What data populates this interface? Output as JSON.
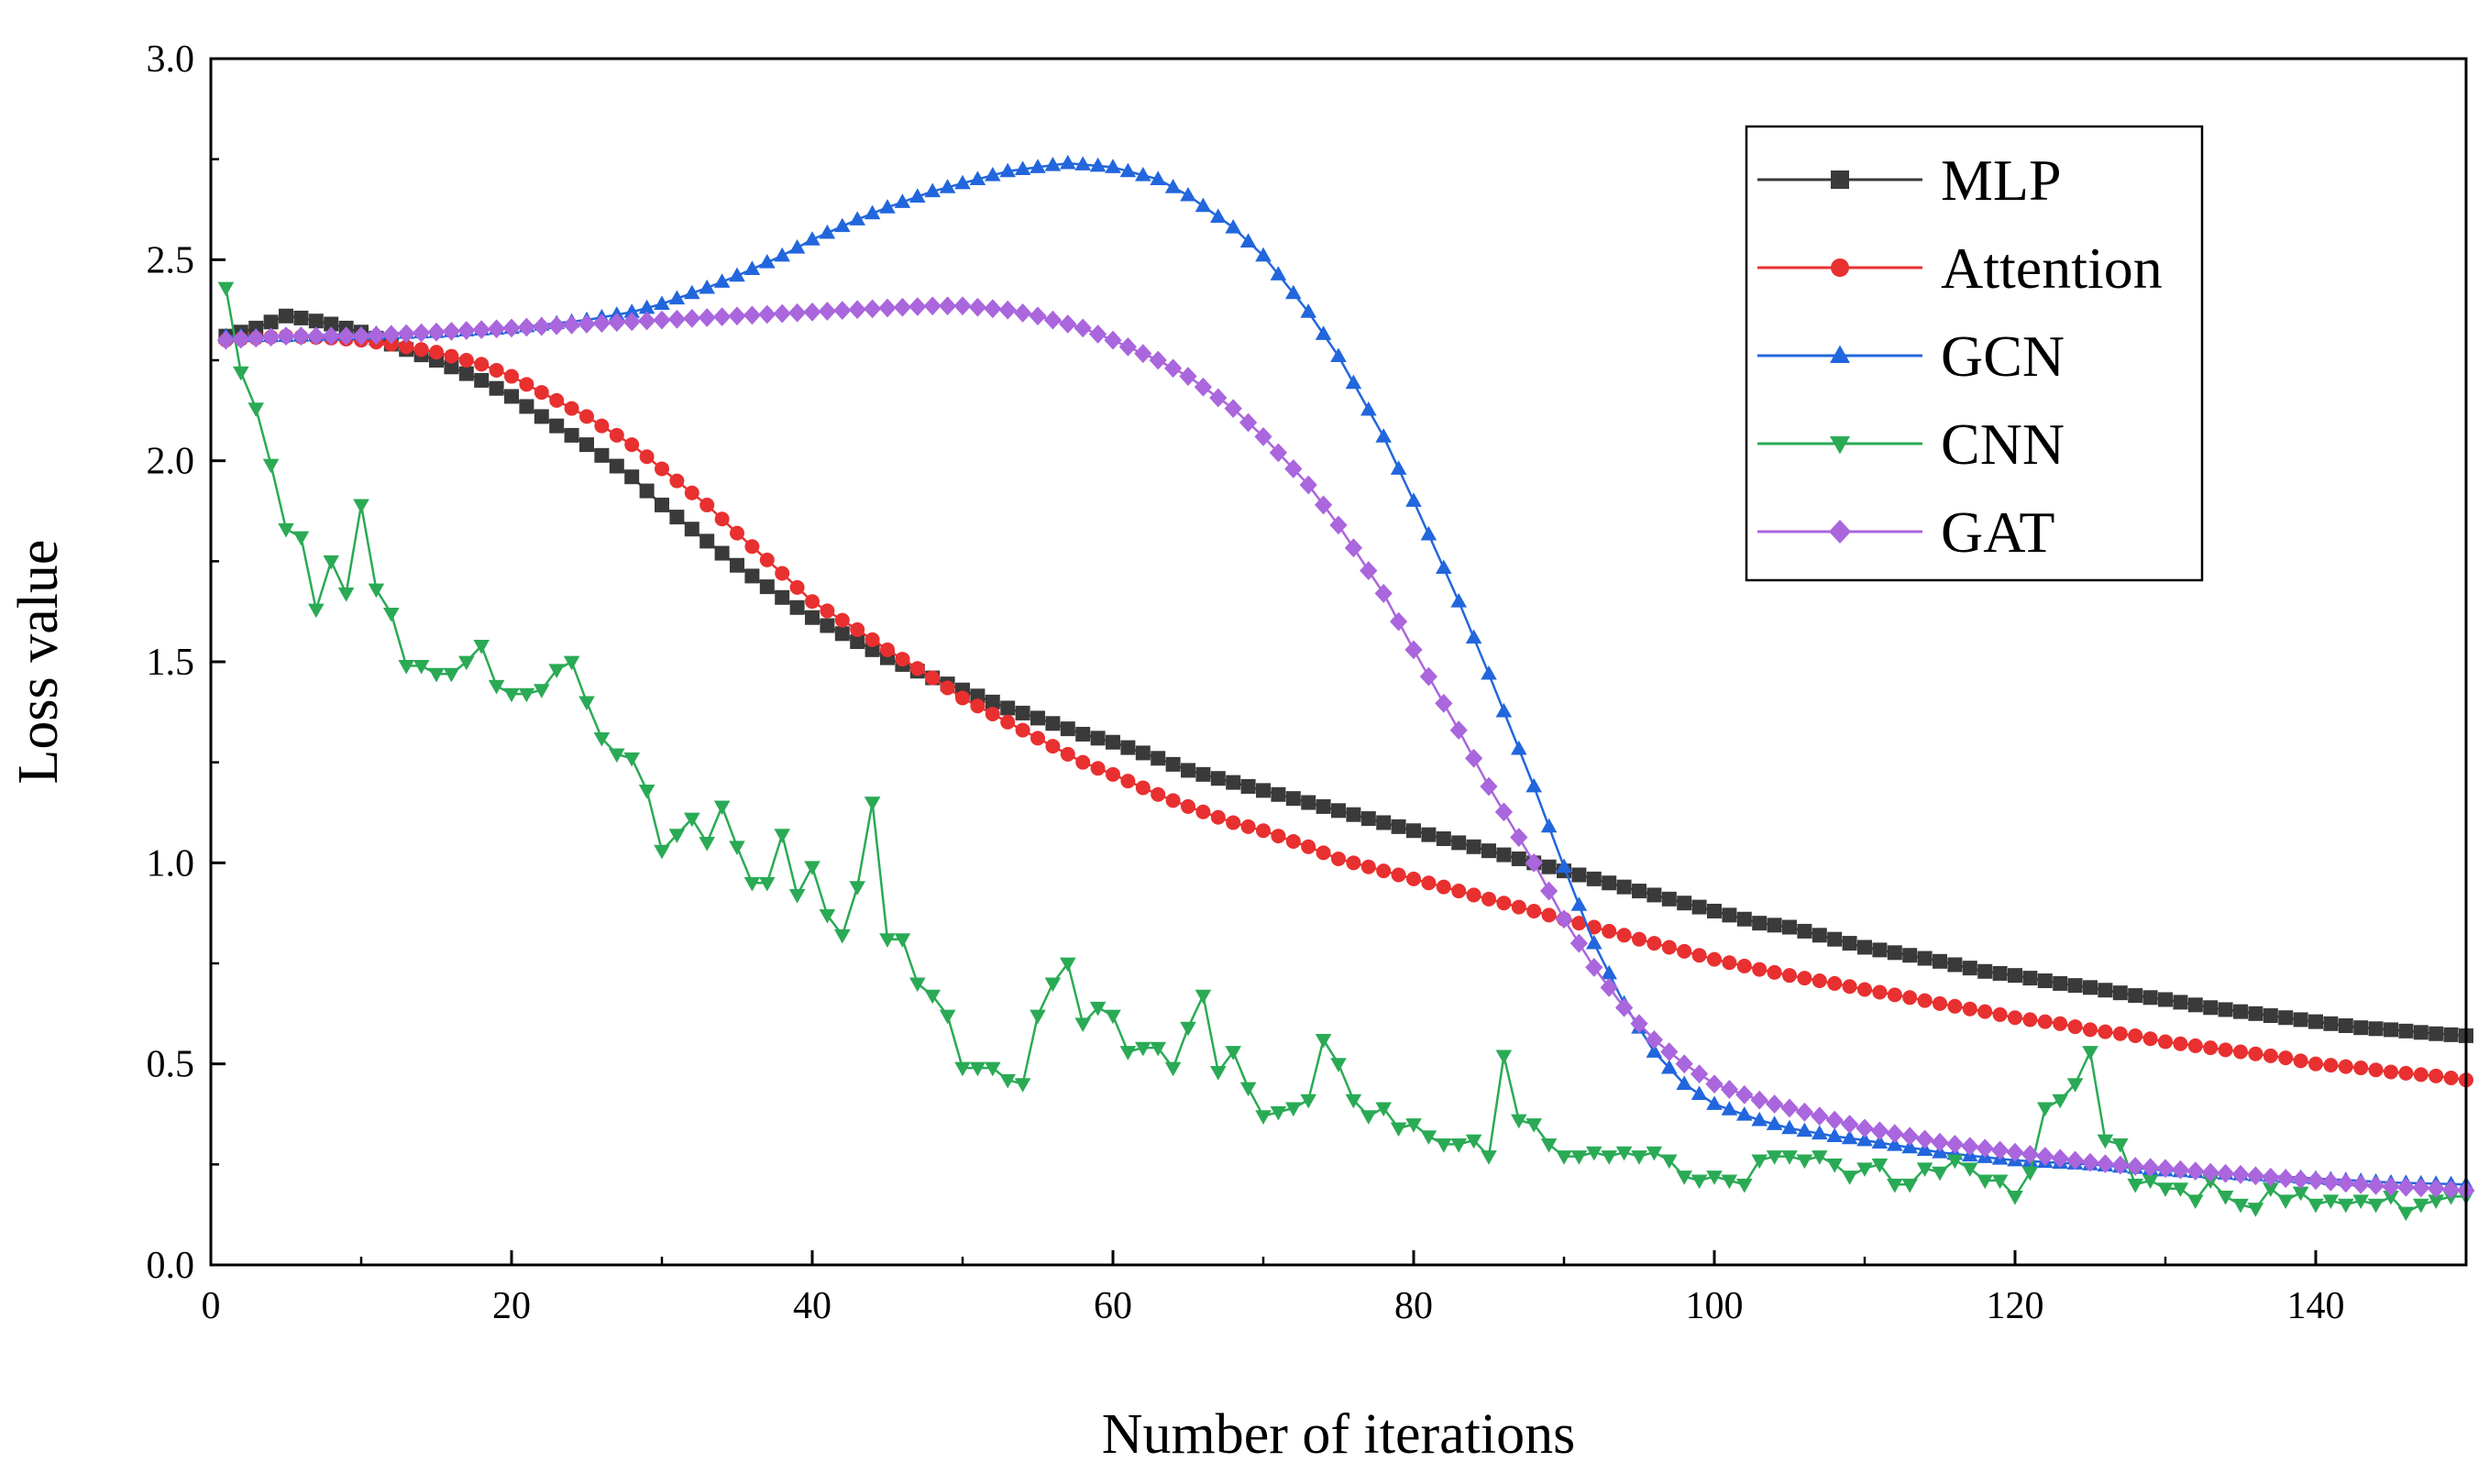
{
  "chart_data": {
    "type": "line",
    "title": "",
    "xlabel": "Number of iterations",
    "ylabel": "Loss value",
    "xlim": [
      0,
      150
    ],
    "ylim": [
      0.0,
      3.0
    ],
    "xticks": [
      0,
      20,
      40,
      60,
      80,
      100,
      120,
      140
    ],
    "xtick_labels": [
      "0",
      "20",
      "40",
      "60",
      "80",
      "100",
      "120",
      "140"
    ],
    "yticks": [
      0.0,
      0.5,
      1.0,
      1.5,
      2.0,
      2.5,
      3.0
    ],
    "ytick_labels": [
      "0.0",
      "0.5",
      "1.0",
      "1.5",
      "2.0",
      "2.5",
      "3.0"
    ],
    "grid": false,
    "legend_position": "top-right",
    "series": [
      {
        "name": "MLP",
        "color": "#3a3a3a",
        "marker": "square",
        "x": [
          1,
          2,
          3,
          4,
          5,
          6,
          8,
          10,
          12,
          15,
          18,
          20,
          22,
          25,
          28,
          30,
          33,
          35,
          38,
          40,
          43,
          45,
          48,
          50,
          53,
          55,
          58,
          60,
          63,
          65,
          68,
          70,
          73,
          75,
          78,
          80,
          83,
          85,
          88,
          90,
          93,
          95,
          98,
          100,
          103,
          105,
          108,
          110,
          113,
          115,
          118,
          120,
          123,
          125,
          128,
          130,
          133,
          135,
          138,
          140,
          143,
          145,
          148,
          150
        ],
        "y": [
          2.31,
          2.32,
          2.33,
          2.345,
          2.36,
          2.355,
          2.34,
          2.32,
          2.29,
          2.25,
          2.2,
          2.16,
          2.11,
          2.04,
          1.96,
          1.89,
          1.8,
          1.74,
          1.66,
          1.61,
          1.55,
          1.51,
          1.46,
          1.43,
          1.385,
          1.36,
          1.32,
          1.3,
          1.26,
          1.23,
          1.2,
          1.18,
          1.15,
          1.13,
          1.1,
          1.08,
          1.05,
          1.03,
          1.0,
          0.98,
          0.95,
          0.93,
          0.9,
          0.88,
          0.85,
          0.84,
          0.81,
          0.79,
          0.77,
          0.755,
          0.73,
          0.72,
          0.7,
          0.69,
          0.67,
          0.66,
          0.64,
          0.63,
          0.615,
          0.605,
          0.59,
          0.585,
          0.575,
          0.57
        ]
      },
      {
        "name": "Attention",
        "color": "#e83030",
        "marker": "circle",
        "x": [
          1,
          3,
          5,
          8,
          10,
          12,
          15,
          18,
          20,
          22,
          25,
          28,
          30,
          33,
          35,
          38,
          40,
          43,
          45,
          48,
          50,
          53,
          55,
          58,
          60,
          63,
          65,
          68,
          70,
          73,
          75,
          78,
          80,
          83,
          85,
          88,
          90,
          93,
          95,
          98,
          100,
          103,
          105,
          108,
          110,
          113,
          115,
          118,
          120,
          123,
          125,
          128,
          130,
          133,
          135,
          138,
          140,
          143,
          145,
          148,
          150
        ],
        "y": [
          2.3,
          2.305,
          2.31,
          2.305,
          2.3,
          2.29,
          2.27,
          2.24,
          2.21,
          2.17,
          2.11,
          2.04,
          1.98,
          1.89,
          1.82,
          1.72,
          1.65,
          1.58,
          1.53,
          1.46,
          1.41,
          1.35,
          1.31,
          1.25,
          1.22,
          1.17,
          1.14,
          1.1,
          1.08,
          1.04,
          1.01,
          0.98,
          0.96,
          0.93,
          0.91,
          0.88,
          0.86,
          0.83,
          0.81,
          0.78,
          0.76,
          0.735,
          0.72,
          0.7,
          0.685,
          0.665,
          0.65,
          0.63,
          0.615,
          0.6,
          0.585,
          0.57,
          0.555,
          0.54,
          0.53,
          0.515,
          0.5,
          0.49,
          0.48,
          0.47,
          0.46
        ]
      },
      {
        "name": "GCN",
        "color": "#2266dd",
        "marker": "triangle-up",
        "x": [
          1,
          5,
          10,
          15,
          20,
          25,
          28,
          30,
          33,
          35,
          38,
          40,
          43,
          45,
          48,
          50,
          53,
          55,
          57,
          60,
          63,
          65,
          68,
          70,
          73,
          75,
          78,
          80,
          83,
          85,
          88,
          90,
          92,
          94,
          96,
          98,
          100,
          103,
          105,
          108,
          110,
          115,
          120,
          125,
          130,
          135,
          140,
          145,
          150
        ],
        "y": [
          2.31,
          2.31,
          2.315,
          2.32,
          2.33,
          2.35,
          2.37,
          2.39,
          2.43,
          2.46,
          2.51,
          2.55,
          2.6,
          2.63,
          2.67,
          2.69,
          2.72,
          2.73,
          2.74,
          2.73,
          2.7,
          2.66,
          2.58,
          2.51,
          2.37,
          2.26,
          2.06,
          1.9,
          1.65,
          1.47,
          1.19,
          0.99,
          0.8,
          0.65,
          0.53,
          0.45,
          0.4,
          0.36,
          0.34,
          0.32,
          0.31,
          0.28,
          0.26,
          0.25,
          0.235,
          0.225,
          0.215,
          0.205,
          0.2
        ]
      },
      {
        "name": "CNN",
        "color": "#2aaa55",
        "marker": "triangle-down",
        "x": [
          1,
          2,
          3,
          4,
          5,
          6,
          7,
          8,
          9,
          10,
          11,
          12,
          13,
          14,
          15,
          16,
          17,
          18,
          19,
          20,
          21,
          22,
          23,
          24,
          25,
          26,
          27,
          28,
          29,
          30,
          31,
          32,
          33,
          34,
          35,
          36,
          37,
          38,
          39,
          40,
          41,
          42,
          43,
          44,
          45,
          46,
          47,
          48,
          49,
          50,
          51,
          52,
          53,
          54,
          55,
          56,
          57,
          58,
          59,
          60,
          61,
          62,
          63,
          64,
          65,
          66,
          67,
          68,
          69,
          70,
          71,
          72,
          73,
          74,
          75,
          76,
          77,
          78,
          79,
          80,
          81,
          82,
          83,
          84,
          85,
          86,
          87,
          88,
          89,
          90,
          91,
          92,
          93,
          94,
          95,
          96,
          97,
          98,
          99,
          100,
          101,
          102,
          103,
          104,
          105,
          106,
          107,
          108,
          109,
          110,
          111,
          112,
          113,
          114,
          115,
          116,
          117,
          118,
          119,
          120,
          121,
          122,
          123,
          124,
          125,
          126,
          127,
          128,
          129,
          130,
          131,
          132,
          133,
          134,
          135,
          136,
          137,
          138,
          139,
          140,
          141,
          142,
          143,
          144,
          145,
          146,
          147,
          148,
          149,
          150
        ],
        "y": [
          2.43,
          2.22,
          2.13,
          1.99,
          1.83,
          1.81,
          1.63,
          1.75,
          1.67,
          1.89,
          1.68,
          1.62,
          1.49,
          1.49,
          1.47,
          1.47,
          1.5,
          1.54,
          1.44,
          1.42,
          1.42,
          1.43,
          1.48,
          1.5,
          1.4,
          1.31,
          1.27,
          1.26,
          1.18,
          1.03,
          1.07,
          1.11,
          1.05,
          1.14,
          1.04,
          0.95,
          0.95,
          1.07,
          0.92,
          0.99,
          0.87,
          0.82,
          0.94,
          1.15,
          0.81,
          0.81,
          0.7,
          0.67,
          0.62,
          0.49,
          0.49,
          0.49,
          0.46,
          0.45,
          0.62,
          0.7,
          0.75,
          0.6,
          0.64,
          0.62,
          0.53,
          0.54,
          0.54,
          0.49,
          0.59,
          0.67,
          0.48,
          0.53,
          0.44,
          0.37,
          0.38,
          0.39,
          0.41,
          0.56,
          0.5,
          0.41,
          0.37,
          0.39,
          0.34,
          0.35,
          0.32,
          0.3,
          0.3,
          0.31,
          0.27,
          0.52,
          0.36,
          0.35,
          0.3,
          0.27,
          0.27,
          0.28,
          0.27,
          0.28,
          0.27,
          0.28,
          0.26,
          0.22,
          0.21,
          0.22,
          0.21,
          0.2,
          0.26,
          0.27,
          0.27,
          0.26,
          0.27,
          0.25,
          0.22,
          0.24,
          0.25,
          0.2,
          0.2,
          0.24,
          0.23,
          0.26,
          0.24,
          0.21,
          0.21,
          0.17,
          0.23,
          0.39,
          0.41,
          0.45,
          0.53,
          0.31,
          0.3,
          0.2,
          0.21,
          0.19,
          0.19,
          0.16,
          0.21,
          0.17,
          0.15,
          0.14,
          0.19,
          0.16,
          0.18,
          0.15,
          0.16,
          0.15,
          0.16,
          0.15,
          0.17,
          0.13,
          0.15,
          0.16,
          0.17,
          0.17
        ]
      },
      {
        "name": "GAT",
        "color": "#aa66dd",
        "marker": "diamond",
        "x": [
          1,
          5,
          10,
          15,
          20,
          25,
          30,
          35,
          40,
          45,
          48,
          50,
          53,
          55,
          58,
          60,
          63,
          65,
          68,
          70,
          73,
          75,
          78,
          80,
          83,
          85,
          88,
          90,
          92,
          94,
          96,
          98,
          100,
          103,
          105,
          108,
          110,
          113,
          115,
          118,
          120,
          123,
          125,
          128,
          130,
          133,
          135,
          138,
          140,
          143,
          145,
          148,
          150
        ],
        "y": [
          2.3,
          2.31,
          2.31,
          2.32,
          2.33,
          2.34,
          2.35,
          2.36,
          2.37,
          2.38,
          2.385,
          2.385,
          2.375,
          2.36,
          2.33,
          2.3,
          2.25,
          2.21,
          2.13,
          2.06,
          1.94,
          1.84,
          1.67,
          1.53,
          1.33,
          1.19,
          1.0,
          0.86,
          0.74,
          0.64,
          0.56,
          0.5,
          0.45,
          0.41,
          0.39,
          0.36,
          0.34,
          0.32,
          0.305,
          0.29,
          0.28,
          0.265,
          0.255,
          0.245,
          0.24,
          0.23,
          0.225,
          0.215,
          0.21,
          0.2,
          0.195,
          0.19,
          0.185
        ]
      }
    ]
  }
}
